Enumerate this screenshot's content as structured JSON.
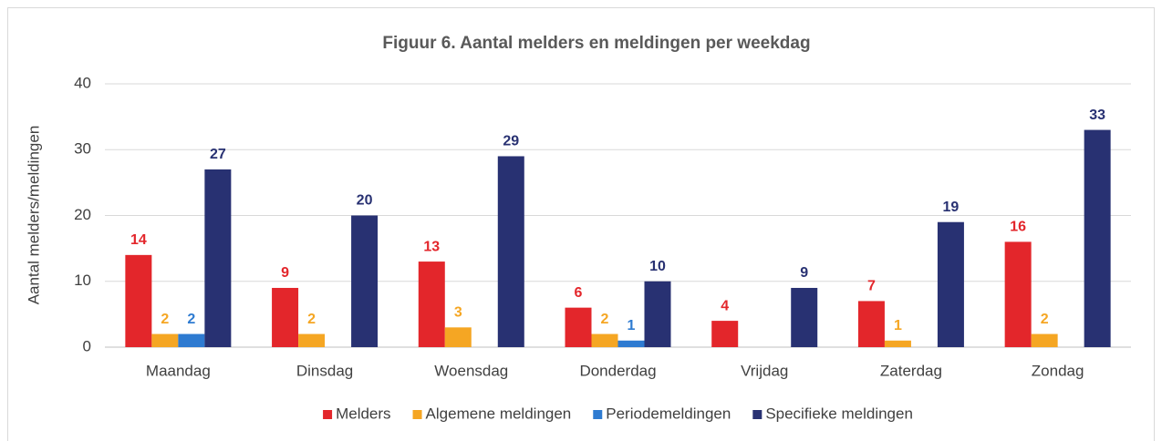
{
  "chart_data": {
    "type": "bar",
    "title": "Figuur 6. Aantal melders en meldingen per weekdag",
    "y_label": "Aantal melders/meldingen",
    "categories": [
      "Maandag",
      "Dinsdag",
      "Woensdag",
      "Donderdag",
      "Vrijdag",
      "Zaterdag",
      "Zondag"
    ],
    "series": [
      {
        "name": "Melders",
        "color": "#e3262b",
        "values": [
          14,
          9,
          13,
          6,
          4,
          7,
          16
        ]
      },
      {
        "name": "Algemene meldingen",
        "color": "#f5a623",
        "values": [
          2,
          2,
          3,
          2,
          null,
          1,
          2
        ]
      },
      {
        "name": "Periodemeldingen",
        "color": "#2e7bd1",
        "values": [
          2,
          null,
          null,
          1,
          null,
          null,
          null
        ]
      },
      {
        "name": "Specifieke meldingen",
        "color": "#283172",
        "values": [
          27,
          20,
          29,
          10,
          9,
          19,
          33
        ]
      }
    ],
    "ylim": [
      0,
      40
    ],
    "yticks": [
      0,
      10,
      20,
      30,
      40
    ],
    "grid": true,
    "legend": "bottom"
  }
}
